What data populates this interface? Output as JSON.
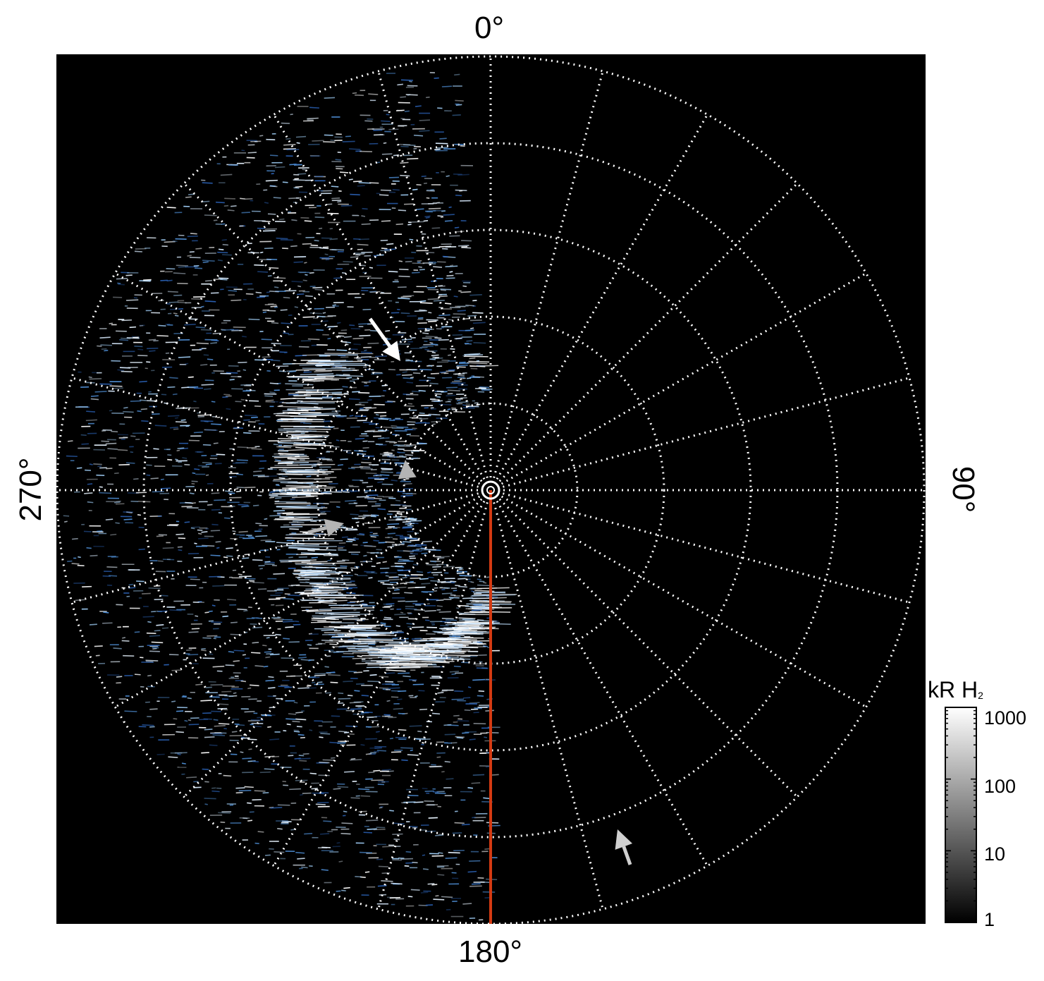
{
  "labels": {
    "top": "0°",
    "right": "90°",
    "bottom": "180°",
    "left": "270°"
  },
  "colorbar": {
    "title": "kR H",
    "title_subscript": "2",
    "ticks": [
      "1000",
      "100",
      "10",
      "1"
    ]
  },
  "colors": {
    "background": "#000000",
    "grid": "#ffffff",
    "aurora": "#c8e6ff",
    "meridian": "#d43a12",
    "arrow_white": "#ffffff",
    "arrow_gray": "#b4b4b4"
  },
  "grid": {
    "meridians_deg": 15,
    "rings": 5
  },
  "icons": [
    "arrow-icon",
    "pole-marker-icon"
  ]
}
